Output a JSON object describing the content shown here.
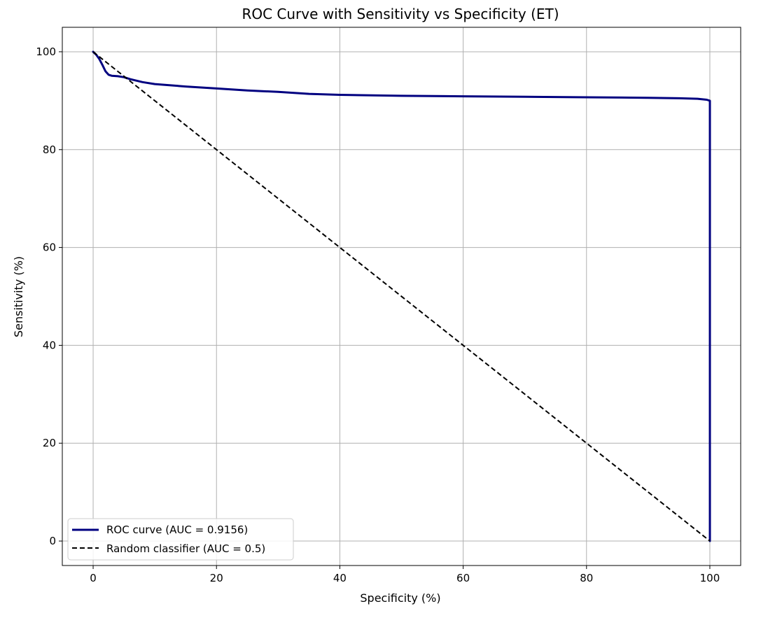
{
  "chart_data": {
    "type": "line",
    "title": "ROC Curve with Sensitivity vs Specificity (ET)",
    "xlabel": "Specificity (%)",
    "ylabel": "Sensitivity (%)",
    "xlim": [
      -5,
      105
    ],
    "ylim": [
      -5,
      105
    ],
    "xticks": [
      0,
      20,
      40,
      60,
      80,
      100
    ],
    "yticks": [
      0,
      20,
      40,
      60,
      80,
      100
    ],
    "xtick_labels": [
      "0",
      "20",
      "40",
      "60",
      "80",
      "100"
    ],
    "ytick_labels": [
      "0",
      "20",
      "40",
      "60",
      "80",
      "100"
    ],
    "grid": true,
    "legend_position": "lower-left",
    "series": [
      {
        "name": "ROC curve (AUC = 0.9156)",
        "color": "#000080",
        "style": "solid",
        "x": [
          0,
          0.5,
          1.0,
          1.5,
          2.0,
          2.5,
          3.0,
          4.0,
          5.0,
          6.0,
          8.0,
          10.0,
          12.0,
          15.0,
          20.0,
          25.0,
          30.0,
          35.0,
          40.0,
          50.0,
          60.0,
          70.0,
          80.0,
          90.0,
          95.0,
          98.0,
          99.5,
          100.0,
          100.0,
          100.0
        ],
        "y": [
          100.0,
          99.4,
          98.5,
          97.3,
          96.0,
          95.3,
          95.1,
          95.0,
          94.8,
          94.4,
          93.8,
          93.4,
          93.2,
          92.9,
          92.5,
          92.1,
          91.8,
          91.4,
          91.2,
          91.0,
          90.9,
          90.8,
          90.7,
          90.6,
          90.5,
          90.4,
          90.2,
          90.0,
          45.0,
          0.0
        ]
      },
      {
        "name": "Random classifier (AUC = 0.5)",
        "color": "#000000",
        "style": "dashed",
        "x": [
          0,
          100
        ],
        "y": [
          100,
          0
        ]
      }
    ]
  }
}
